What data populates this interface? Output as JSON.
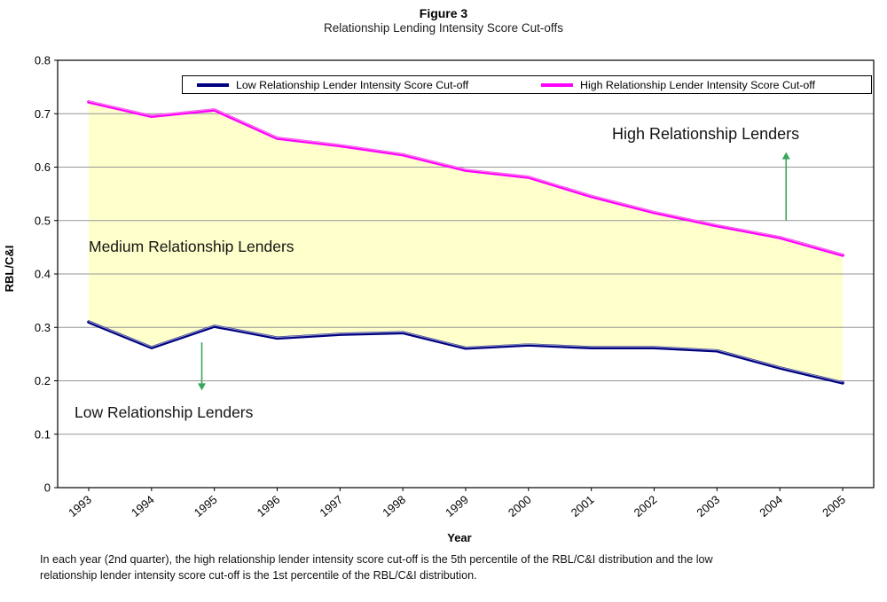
{
  "chart_data": {
    "type": "line",
    "title": "Figure 3",
    "subtitle": "Relationship Lending Intensity Score Cut-offs",
    "xlabel": "Year",
    "ylabel": "RBL/C&I",
    "ylim": [
      0,
      0.8
    ],
    "ytick_step": 0.1,
    "grid": true,
    "legend_position": "top",
    "categories": [
      1993,
      1994,
      1995,
      1996,
      1997,
      1998,
      1999,
      2000,
      2001,
      2002,
      2003,
      2004,
      2005
    ],
    "series": [
      {
        "name": "Low Relationship Lender Intensity Score Cut-off",
        "color": "#000080",
        "highlight": "#aab4cf",
        "values": [
          0.31,
          0.262,
          0.302,
          0.28,
          0.287,
          0.29,
          0.261,
          0.267,
          0.262,
          0.262,
          0.256,
          0.224,
          0.196
        ]
      },
      {
        "name": "High Relationship Lender Intensity Score Cut-off",
        "color": "#FF00FF",
        "highlight": "#ff9ae4",
        "values": [
          0.722,
          0.695,
          0.707,
          0.654,
          0.64,
          0.623,
          0.594,
          0.581,
          0.545,
          0.515,
          0.49,
          0.468,
          0.435
        ]
      }
    ],
    "band_fill": "#FFFFCC",
    "gridline_color": "#969696",
    "arrow_color": "#3aa65c",
    "annotations": {
      "medium": {
        "text": "Medium Relationship Lenders"
      },
      "high": {
        "text": "High Relationship Lenders",
        "arrow": {
          "x": 2004.1,
          "from": 0.5,
          "to": 0.628
        }
      },
      "low": {
        "text": "Low Relationship Lenders",
        "arrow": {
          "x": 1994.8,
          "from": 0.272,
          "to": 0.182
        }
      }
    }
  },
  "footnote": {
    "lines": [
      "In each year (2nd quarter), the high relationship lender intensity score cut-off is the 5th percentile of the RBL/C&I distribution and the low",
      "relationship lender intensity score cut-off is the 1st percentile of the RBL/C&I distribution."
    ]
  }
}
